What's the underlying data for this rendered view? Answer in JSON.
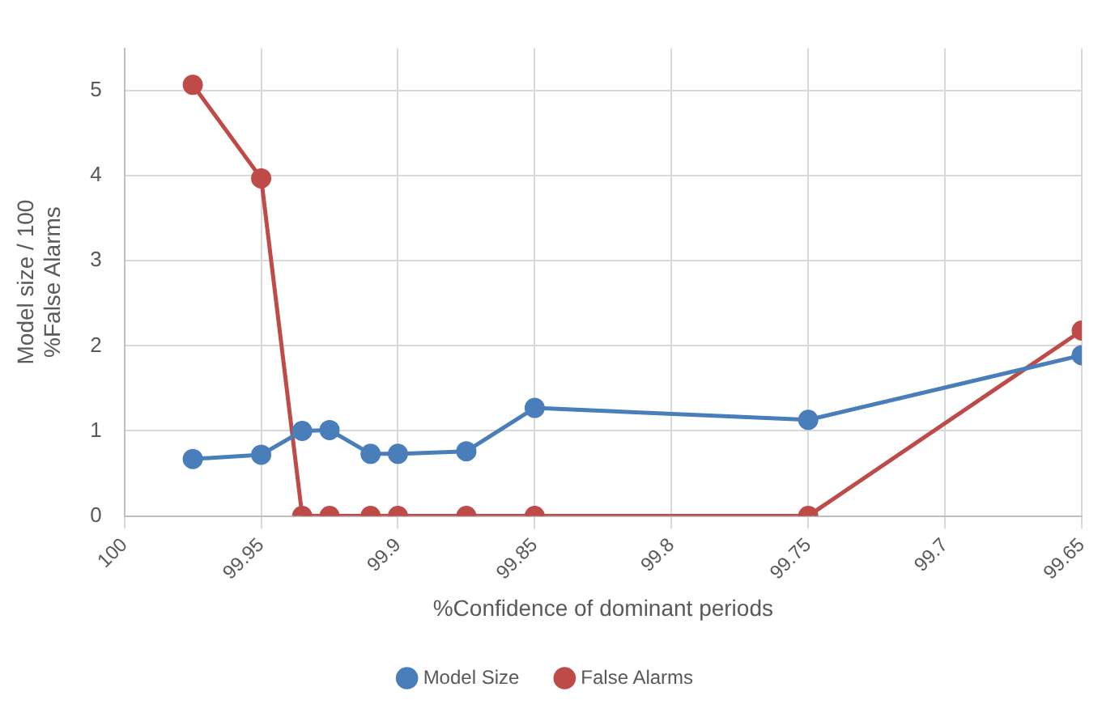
{
  "chart_data": {
    "type": "line",
    "xlabel": "%Confidence of dominant periods",
    "ylabel": "Model size / 100\n%False Alarms",
    "x": [
      99.975,
      99.95,
      99.935,
      99.925,
      99.91,
      99.9,
      99.875,
      99.85,
      99.75,
      99.65
    ],
    "series": [
      {
        "name": "Model Size",
        "color": "#4a7ebb",
        "values": [
          0.67,
          0.72,
          1.0,
          1.01,
          0.73,
          0.73,
          0.76,
          1.27,
          1.13,
          1.89
        ]
      },
      {
        "name": "False Alarms",
        "color": "#be4b48",
        "values": [
          5.07,
          3.97,
          0,
          0,
          0,
          0,
          0,
          0,
          0,
          2.18
        ]
      }
    ],
    "xlim": [
      100,
      99.65
    ],
    "xticks": [
      100,
      99.95,
      99.9,
      99.85,
      99.8,
      99.75,
      99.7,
      99.65
    ],
    "ylim": [
      0,
      5.5
    ],
    "yticks": [
      0,
      1,
      2,
      3,
      4,
      5
    ],
    "grid": true,
    "legend": "bottom",
    "marker": "circle",
    "line_style": "solid"
  }
}
